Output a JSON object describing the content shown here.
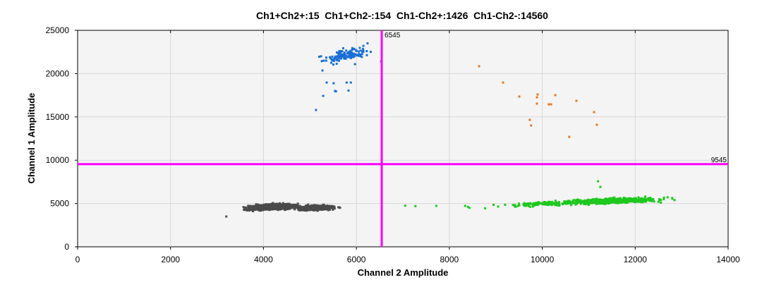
{
  "chart_data": {
    "type": "scatter",
    "title": "Ch1+Ch2+:15  Ch1+Ch2-:154  Ch1-Ch2+:1426  Ch1-Ch2-:14560",
    "xlabel": "Channel 2 Amplitude",
    "ylabel": "Channel 1 Amplitude",
    "xlim": [
      0,
      14000
    ],
    "ylim": [
      0,
      25000
    ],
    "xticks": [
      0,
      2000,
      4000,
      6000,
      8000,
      10000,
      12000,
      14000
    ],
    "yticks": [
      0,
      5000,
      10000,
      15000,
      20000,
      25000
    ],
    "grid": true,
    "thresholds": {
      "ch2": 6545,
      "ch1": 9545,
      "ch2_label": "6545",
      "ch1_label": "9545",
      "color": "#ff00ff"
    },
    "counts": {
      "Ch1+Ch2+": 15,
      "Ch1+Ch2-": 154,
      "Ch1-Ch2+": 1426,
      "Ch1-Ch2-": 14560
    },
    "series": [
      {
        "name": "Ch1-Ch2-",
        "color": "#4a4a4a",
        "clusters": [
          {
            "cx": 4175,
            "cy": 4600,
            "sx": 330,
            "sy": 220,
            "n": 900,
            "slope": 0.25
          },
          {
            "cx": 5100,
            "cy": 4500,
            "sx": 280,
            "sy": 200,
            "n": 500,
            "slope": 0.1
          }
        ],
        "points": [
          [
            3200,
            3500
          ],
          [
            3650,
            4200
          ],
          [
            3700,
            4250
          ]
        ]
      },
      {
        "name": "Ch1-Ch2+",
        "color": "#1ec81e",
        "clusters": [
          {
            "cx": 11500,
            "cy": 5300,
            "sx": 650,
            "sy": 200,
            "n": 650,
            "slope": 0.2
          },
          {
            "cx": 10100,
            "cy": 5000,
            "sx": 450,
            "sy": 170,
            "n": 120,
            "slope": 0.3
          }
        ],
        "points": [
          [
            7050,
            4750
          ],
          [
            7270,
            4700
          ],
          [
            7720,
            4720
          ],
          [
            8340,
            4730
          ],
          [
            8400,
            4620
          ],
          [
            8430,
            4500
          ],
          [
            8770,
            4450
          ],
          [
            8950,
            4850
          ],
          [
            9050,
            4650
          ],
          [
            9200,
            4850
          ],
          [
            12500,
            5200
          ],
          [
            12800,
            5550
          ],
          [
            11200,
            7570
          ],
          [
            11250,
            6920
          ]
        ]
      },
      {
        "name": "Ch1+Ch2-",
        "color": "#1a6fd6",
        "clusters": [
          {
            "cx": 5780,
            "cy": 22100,
            "sx": 320,
            "sy": 480,
            "n": 125,
            "slope": 1.2
          }
        ],
        "points": [
          [
            5130,
            15800
          ],
          [
            5285,
            17430
          ],
          [
            5360,
            18970
          ],
          [
            5510,
            18890
          ],
          [
            5790,
            18970
          ],
          [
            5880,
            18970
          ],
          [
            5540,
            18000
          ],
          [
            5560,
            17950
          ],
          [
            5830,
            18050
          ],
          [
            5270,
            20360
          ],
          [
            5970,
            21090
          ],
          [
            6530,
            21420
          ],
          [
            5240,
            22000
          ],
          [
            5350,
            21500
          ],
          [
            6240,
            23500
          ],
          [
            6150,
            23200
          ]
        ]
      },
      {
        "name": "Ch1+Ch2+",
        "color": "#e87722",
        "points": [
          [
            8640,
            20850
          ],
          [
            9156,
            18970
          ],
          [
            9505,
            17350
          ],
          [
            9885,
            17260
          ],
          [
            9900,
            17590
          ],
          [
            9885,
            16530
          ],
          [
            10140,
            16450
          ],
          [
            10190,
            16450
          ],
          [
            10280,
            17510
          ],
          [
            10735,
            16860
          ],
          [
            9730,
            14660
          ],
          [
            9760,
            14010
          ],
          [
            11115,
            15550
          ],
          [
            11175,
            14090
          ],
          [
            10580,
            12700
          ]
        ]
      }
    ]
  }
}
